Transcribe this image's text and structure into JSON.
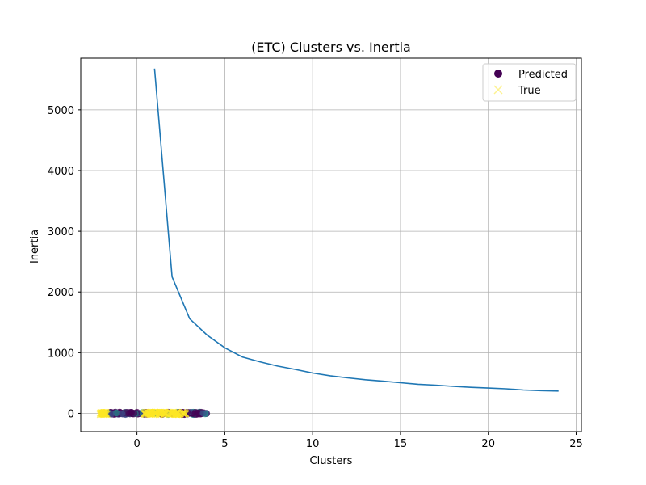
{
  "chart_data": {
    "type": "line",
    "title": "(ETC) Clusters vs. Inertia",
    "xlabel": "Clusters",
    "ylabel": "Inertia",
    "xlim": [
      -3.2,
      25.3
    ],
    "ylim": [
      -300,
      5850
    ],
    "xticks": [
      0,
      5,
      10,
      15,
      20,
      25
    ],
    "yticks": [
      0,
      1000,
      2000,
      3000,
      4000,
      5000
    ],
    "grid": true,
    "legend_position": "top-right",
    "line": {
      "color": "#1f77b4",
      "x": [
        1,
        2,
        3,
        4,
        5,
        6,
        7,
        8,
        9,
        10,
        11,
        12,
        13,
        14,
        15,
        16,
        17,
        18,
        19,
        20,
        21,
        22,
        23,
        24
      ],
      "y": [
        5680,
        2250,
        1560,
        1290,
        1080,
        930,
        850,
        780,
        725,
        665,
        620,
        585,
        555,
        530,
        505,
        480,
        465,
        445,
        430,
        418,
        405,
        385,
        375,
        368
      ]
    },
    "scatter": [
      {
        "name": "Predicted",
        "marker": "circle",
        "color": "#440154"
      },
      {
        "name": "True",
        "marker": "x",
        "color": "#fde725"
      }
    ]
  }
}
